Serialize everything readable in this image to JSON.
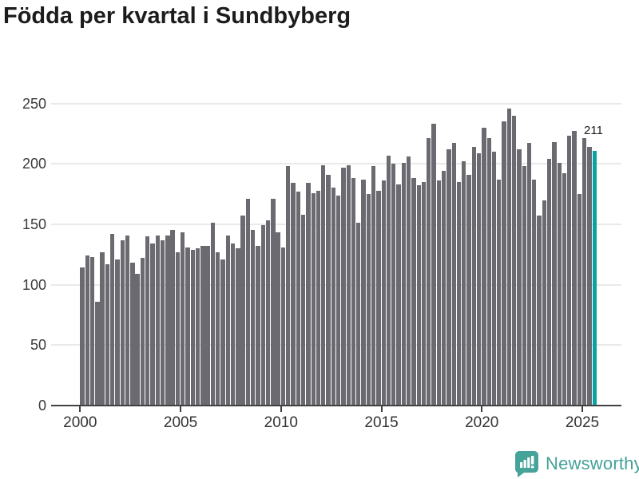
{
  "title": "Födda per kvartal i Sundbyberg",
  "footer": {
    "brand": "Newsworthy"
  },
  "colors": {
    "bar": "#6b6a71",
    "highlight": "#08a2a2",
    "grid": "#e9e9e9",
    "axis": "#414141",
    "tick_text": "#333333",
    "title_text": "#1c1c1c",
    "brand_teal": "#44a199"
  },
  "chart_data": {
    "type": "bar",
    "title": "Födda per kvartal i Sundbyberg",
    "xlabel": "",
    "ylabel": "",
    "ylim": [
      0,
      250
    ],
    "grid": true,
    "frequency": "quarterly",
    "x_start": "2000 Q1",
    "x_end": "2025 Q3",
    "x_tick_labels": [
      "2000",
      "2005",
      "2010",
      "2015",
      "2020",
      "2025"
    ],
    "y_tick_labels": [
      "0",
      "50",
      "100",
      "150",
      "200",
      "250"
    ],
    "highlight_last_bar": true,
    "highlight_value_label": "211",
    "values": [
      114,
      124,
      123,
      86,
      127,
      117,
      142,
      121,
      137,
      141,
      118,
      109,
      122,
      140,
      134,
      141,
      137,
      141,
      145,
      127,
      143,
      131,
      129,
      130,
      132,
      132,
      151,
      127,
      121,
      141,
      134,
      130,
      157,
      171,
      145,
      132,
      149,
      153,
      171,
      143,
      131,
      198,
      184,
      177,
      158,
      184,
      176,
      178,
      199,
      191,
      180,
      174,
      197,
      199,
      188,
      151,
      187,
      175,
      198,
      178,
      186,
      207,
      200,
      183,
      201,
      206,
      188,
      182,
      185,
      221,
      233,
      186,
      194,
      212,
      217,
      185,
      202,
      191,
      214,
      209,
      230,
      221,
      210,
      187,
      235,
      246,
      240,
      212,
      198,
      217,
      187,
      157,
      170,
      204,
      218,
      201,
      192,
      223,
      227,
      175,
      221,
      214,
      211
    ]
  }
}
